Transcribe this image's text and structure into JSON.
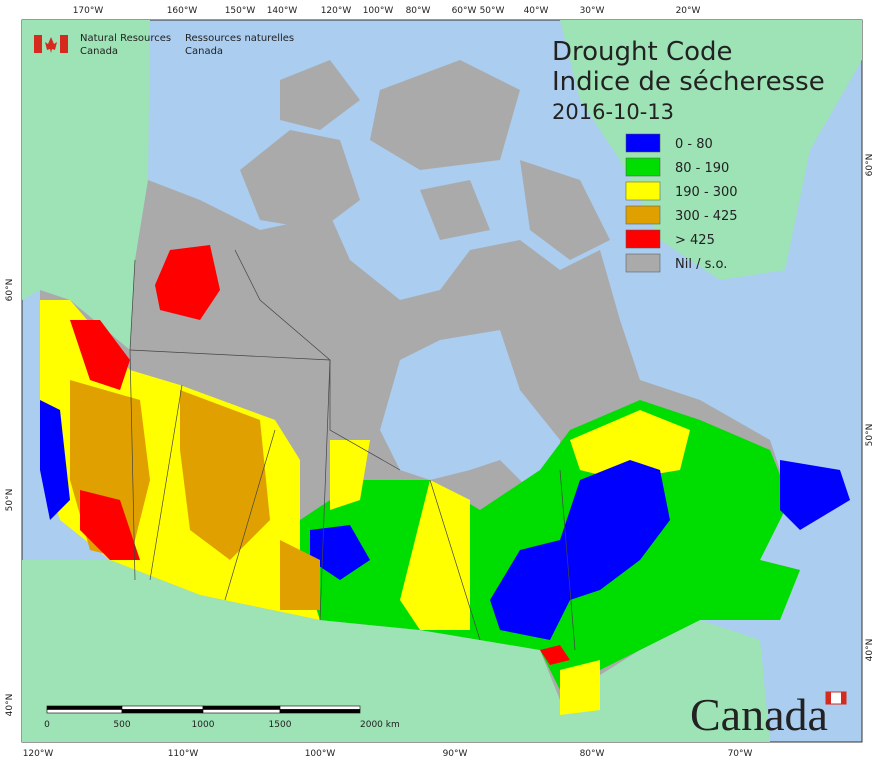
{
  "header": {
    "agency_en": [
      "Natural Resources",
      "Canada"
    ],
    "agency_fr": [
      "Ressources naturelles",
      "Canada"
    ]
  },
  "title": {
    "en": "Drought Code",
    "fr": "Indice de sécheresse",
    "date": "2016-10-13"
  },
  "legend": [
    {
      "label": "0 - 80",
      "color": "#0000ff"
    },
    {
      "label": "80 - 190",
      "color": "#00dd00"
    },
    {
      "label": "190 - 300",
      "color": "#ffff00"
    },
    {
      "label": "300 - 425",
      "color": "#e0a000"
    },
    {
      "label": "> 425",
      "color": "#ff0000"
    },
    {
      "label": "Nil / s.o.",
      "color": "#aaaaaa"
    }
  ],
  "graticule": {
    "top": [
      "170°W",
      "160°W",
      "150°W",
      "140°W",
      "120°W",
      "100°W",
      "80°W",
      "60°W",
      "50°W",
      "40°W",
      "30°W",
      "20°W"
    ],
    "bottom": [
      "120°W",
      "110°W",
      "100°W",
      "90°W",
      "80°W",
      "70°W"
    ],
    "left": [
      "60°N",
      "50°N",
      "40°N"
    ],
    "right": [
      "60°N",
      "50°N",
      "40°N"
    ]
  },
  "scale_bar": [
    "0",
    "500",
    "1000",
    "1500",
    "2000 km"
  ],
  "wordmark": "Canada"
}
